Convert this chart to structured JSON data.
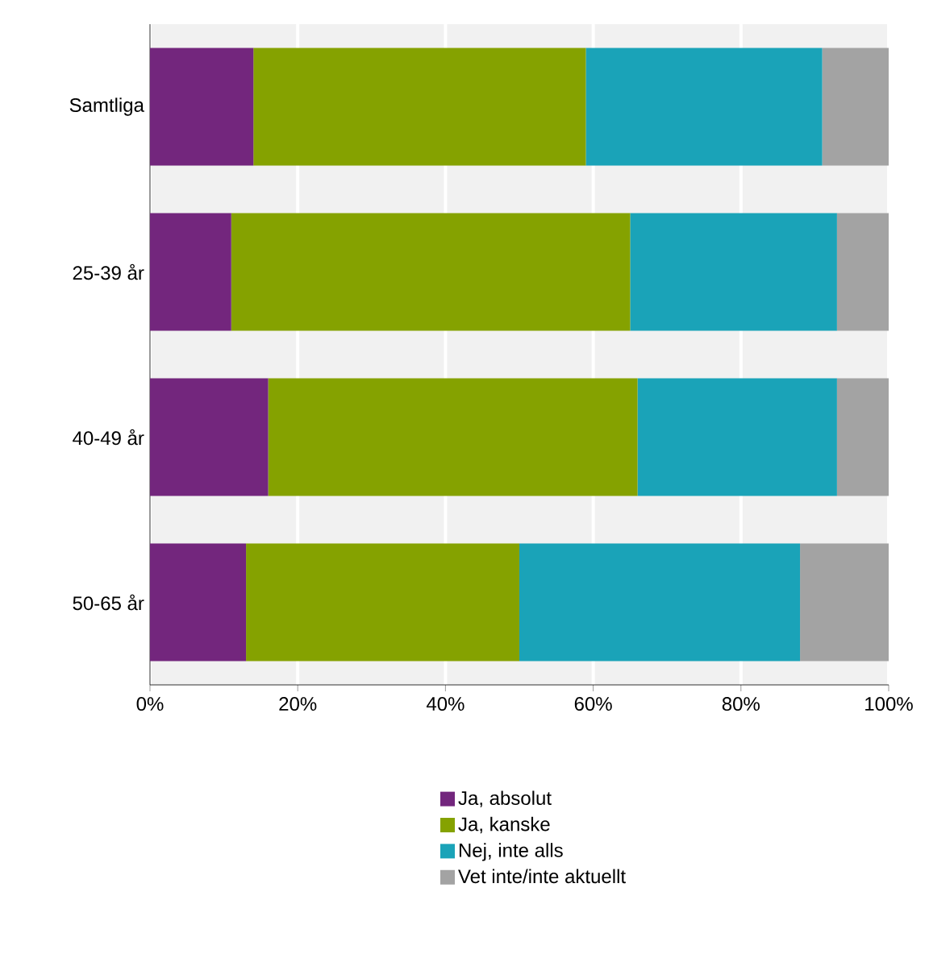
{
  "chart_data": {
    "type": "bar",
    "orientation": "horizontal",
    "stacked": true,
    "categories": [
      "Samtliga",
      "25-39 år",
      "40-49 år",
      "50-65 år"
    ],
    "series": [
      {
        "name": "Ja, absolut",
        "color": "#73267d",
        "values": [
          14,
          11,
          16,
          13
        ]
      },
      {
        "name": "Ja, kanske",
        "color": "#85a200",
        "values": [
          45,
          54,
          50,
          37
        ]
      },
      {
        "name": "Nej, inte alls",
        "color": "#1aa3b8",
        "values": [
          32,
          28,
          27,
          38
        ]
      },
      {
        "name": "Vet inte/inte aktuellt",
        "color": "#a3a3a3",
        "values": [
          9,
          7,
          7,
          12
        ]
      }
    ],
    "xlim": [
      0,
      100
    ],
    "xticks": [
      {
        "value": 0,
        "label": "0%"
      },
      {
        "value": 20,
        "label": "20%"
      },
      {
        "value": 40,
        "label": "40%"
      },
      {
        "value": 60,
        "label": "60%"
      },
      {
        "value": 80,
        "label": "80%"
      },
      {
        "value": 100,
        "label": "100%"
      }
    ],
    "grid": "x",
    "legend": "bottom"
  }
}
